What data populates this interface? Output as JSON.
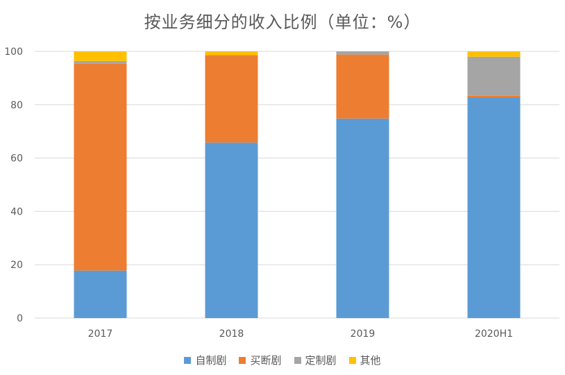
{
  "chart_data": {
    "type": "bar",
    "stacked": true,
    "title": "按业务细分的收入比例（单位：%）",
    "categories": [
      "2017",
      "2018",
      "2019",
      "2020H1"
    ],
    "ylim": [
      0,
      100
    ],
    "yticks": [
      "0",
      "20",
      "40",
      "60",
      "80",
      "100"
    ],
    "grid": true,
    "legend_position": "bottom",
    "series": [
      {
        "name": "自制剧",
        "color": "#5B9BD5",
        "values": [
          17.8,
          65.8,
          74.8,
          82.8
        ]
      },
      {
        "name": "买断剧",
        "color": "#ED7D31",
        "values": [
          77.6,
          32.8,
          24.0,
          0.6
        ]
      },
      {
        "name": "定制剧",
        "color": "#A5A5A5",
        "values": [
          1.0,
          0.0,
          1.2,
          14.6
        ]
      },
      {
        "name": "其他",
        "color": "#FFC000",
        "values": [
          3.6,
          1.4,
          0.0,
          2.0
        ]
      }
    ]
  }
}
